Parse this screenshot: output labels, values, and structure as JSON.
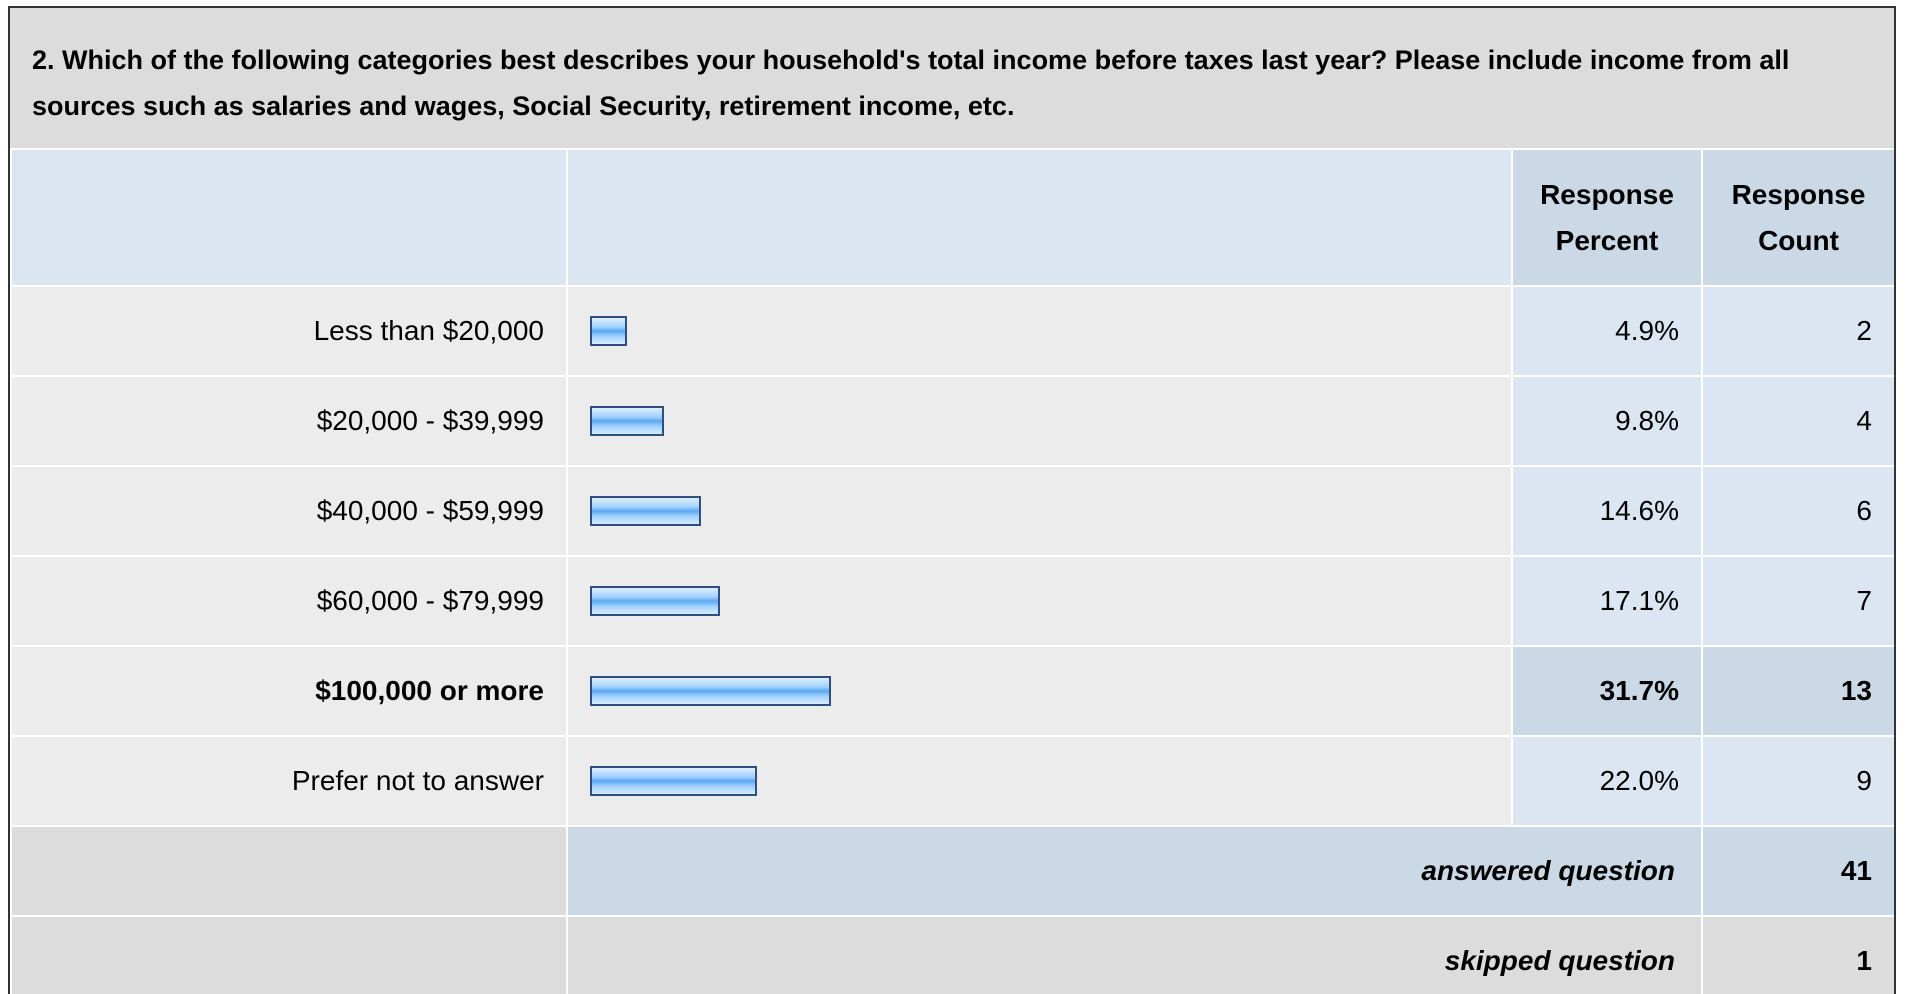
{
  "question": {
    "title": "2. Which of the following categories best describes your household's total income before taxes last year? Please include income from all sources such as salaries and wages, Social Security, retirement income, etc."
  },
  "header": {
    "percent_line1": "Response",
    "percent_line2": "Percent",
    "count_line1": "Response",
    "count_line2": "Count"
  },
  "rows": [
    {
      "label": "Less than $20,000",
      "percent": "4.9%",
      "count": "2",
      "value": 4.9
    },
    {
      "label": "$20,000 - $39,999",
      "percent": "9.8%",
      "count": "4",
      "value": 9.8
    },
    {
      "label": "$40,000 - $59,999",
      "percent": "14.6%",
      "count": "6",
      "value": 14.6
    },
    {
      "label": "$60,000 - $79,999",
      "percent": "17.1%",
      "count": "7",
      "value": 17.1
    },
    {
      "label": "$100,000 or more",
      "percent": "31.7%",
      "count": "13",
      "value": 31.7
    },
    {
      "label": "Prefer not to answer",
      "percent": "22.0%",
      "count": "9",
      "value": 22.0
    }
  ],
  "summary": {
    "answered_label": "answered question",
    "answered_value": "41",
    "skipped_label": "skipped question",
    "skipped_value": "1"
  },
  "colors": {
    "bar_border": "#2f4f82",
    "bar_fill": "#5aa8ef",
    "header_bg": "#dce6f2",
    "highlight_bg": "#cbd8e6"
  }
}
